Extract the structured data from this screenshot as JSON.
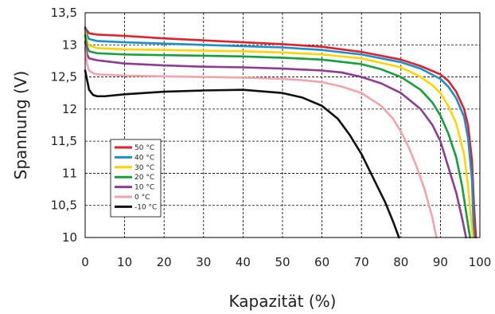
{
  "chart_data": {
    "type": "line",
    "xlabel": "Kapazität (%)",
    "ylabel": "Spannung (V)",
    "xlim": [
      0,
      100
    ],
    "ylim": [
      10,
      13.5
    ],
    "x_ticks": [
      "0",
      "10",
      "20",
      "30",
      "40",
      "50",
      "60",
      "70",
      "80",
      "90",
      "100"
    ],
    "y_ticks": [
      "10",
      "10,5",
      "11",
      "11,5",
      "12",
      "12,5",
      "13",
      "13,5"
    ],
    "grid": true,
    "legend_position": "lower-left",
    "series": [
      {
        "name": "50 °C",
        "color": "#e0202a",
        "x": [
          0,
          0.5,
          1,
          3,
          10,
          20,
          30,
          40,
          50,
          60,
          70,
          80,
          85,
          90,
          92,
          94,
          96,
          97,
          98,
          98.5,
          99
        ],
        "y": [
          13.27,
          13.22,
          13.18,
          13.16,
          13.14,
          13.1,
          13.07,
          13.04,
          13.01,
          12.97,
          12.89,
          12.77,
          12.67,
          12.54,
          12.44,
          12.27,
          12.0,
          11.75,
          11.2,
          10.5,
          10.0
        ]
      },
      {
        "name": "40 °C",
        "color": "#1a8fd0",
        "x": [
          0,
          0.5,
          1,
          3,
          10,
          20,
          30,
          40,
          50,
          60,
          70,
          80,
          85,
          90,
          92,
          94,
          96,
          97,
          98,
          98.5
        ],
        "y": [
          13.25,
          13.15,
          13.09,
          13.06,
          13.04,
          13.02,
          13.0,
          12.98,
          12.96,
          12.92,
          12.85,
          12.73,
          12.63,
          12.47,
          12.35,
          12.17,
          11.88,
          11.55,
          10.9,
          10.0
        ]
      },
      {
        "name": "30 °C",
        "color": "#ffd400",
        "x": [
          0,
          0.5,
          1,
          3,
          10,
          20,
          30,
          40,
          50,
          60,
          70,
          80,
          85,
          88,
          90,
          92,
          94,
          96,
          97,
          98.2
        ],
        "y": [
          13.2,
          13.05,
          12.99,
          12.95,
          12.93,
          12.92,
          12.91,
          12.9,
          12.88,
          12.85,
          12.79,
          12.65,
          12.5,
          12.37,
          12.25,
          12.05,
          11.78,
          11.3,
          10.8,
          10.0
        ]
      },
      {
        "name": "20 °C",
        "color": "#14a03a",
        "x": [
          0,
          0.5,
          1,
          3,
          10,
          20,
          30,
          40,
          50,
          60,
          70,
          75,
          80,
          85,
          88,
          90,
          92,
          94,
          95.5,
          96.5,
          97.5
        ],
        "y": [
          13.15,
          12.97,
          12.9,
          12.87,
          12.85,
          12.84,
          12.83,
          12.82,
          12.8,
          12.77,
          12.7,
          12.62,
          12.5,
          12.3,
          12.1,
          11.9,
          11.62,
          11.25,
          10.8,
          10.4,
          10.0
        ]
      },
      {
        "name": "10 °C",
        "color": "#8e3b93",
        "x": [
          0,
          0.5,
          1,
          3,
          10,
          20,
          30,
          40,
          50,
          60,
          65,
          70,
          75,
          80,
          85,
          88,
          90,
          92,
          94,
          95.5,
          96.5
        ],
        "y": [
          13.05,
          12.85,
          12.79,
          12.76,
          12.71,
          12.68,
          12.66,
          12.65,
          12.63,
          12.6,
          12.57,
          12.5,
          12.4,
          12.25,
          12.0,
          11.75,
          11.5,
          11.1,
          10.7,
          10.3,
          10.0
        ]
      },
      {
        "name": "0 °C",
        "color": "#f2a3ab",
        "x": [
          0,
          0.5,
          1,
          2,
          3,
          10,
          20,
          30,
          40,
          50,
          55,
          60,
          65,
          70,
          75,
          78,
          80,
          82,
          84,
          86,
          88,
          89
        ],
        "y": [
          12.95,
          12.7,
          12.6,
          12.56,
          12.54,
          12.52,
          12.51,
          12.5,
          12.49,
          12.47,
          12.45,
          12.42,
          12.35,
          12.25,
          12.05,
          11.85,
          11.65,
          11.4,
          11.1,
          10.75,
          10.3,
          10.0
        ]
      },
      {
        "name": "-10 °C",
        "color": "#111111",
        "x": [
          0,
          0.5,
          1,
          2,
          3,
          5,
          10,
          20,
          30,
          40,
          50,
          55,
          60,
          64,
          67,
          70,
          72,
          74,
          76,
          78,
          79.5
        ],
        "y": [
          12.6,
          12.45,
          12.3,
          12.22,
          12.2,
          12.2,
          12.23,
          12.27,
          12.29,
          12.3,
          12.25,
          12.18,
          12.05,
          11.85,
          11.6,
          11.3,
          11.05,
          10.8,
          10.55,
          10.25,
          10.0
        ]
      }
    ]
  }
}
